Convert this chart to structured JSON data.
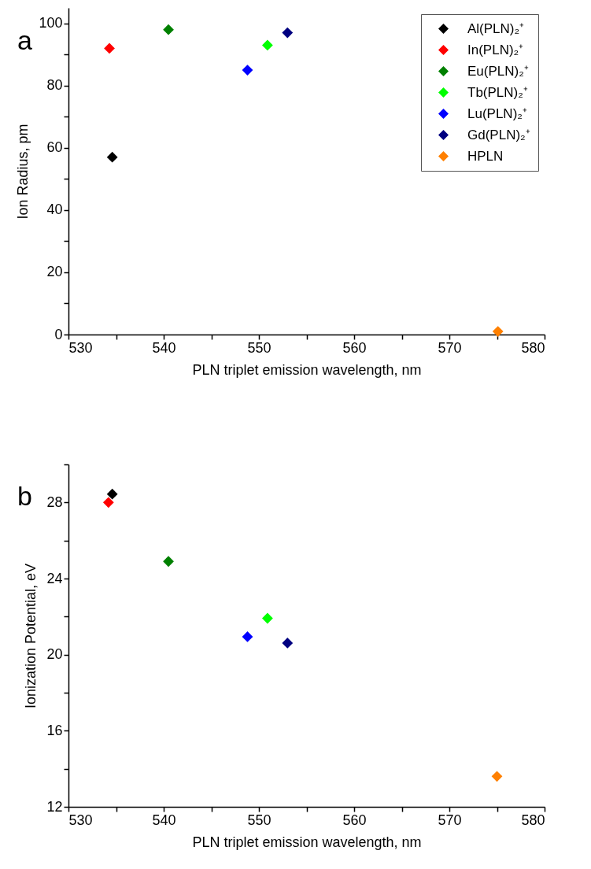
{
  "chart_data": [
    {
      "type": "scatter",
      "title": "a",
      "xlabel": "PLN triplet emission wavelength, nm",
      "ylabel": "Ion Radius, pm",
      "marker": "diamond",
      "legend": "top right",
      "xlim": [
        530,
        580
      ],
      "ylim": [
        0,
        105
      ],
      "xticks": [
        530,
        {
          "value": 535,
          "label": null
        },
        540,
        {
          "value": 545,
          "label": null
        },
        550,
        {
          "value": 555,
          "label": null
        },
        560,
        {
          "value": 565,
          "label": null
        },
        570,
        {
          "value": 575,
          "label": null
        },
        580
      ],
      "yticks": [
        0,
        {
          "value": 10,
          "label": null
        },
        20,
        {
          "value": 30,
          "label": null
        },
        40,
        {
          "value": 50,
          "label": null
        },
        60,
        {
          "value": 70,
          "label": null
        },
        80,
        {
          "value": 90,
          "label": null
        },
        100
      ],
      "series": [
        {
          "name": "Al(PLN)₂⁺",
          "color": "#000000",
          "x": [
            534.6
          ],
          "values": [
            57
          ]
        },
        {
          "name": "In(PLN)₂⁺",
          "color": "#ff0000",
          "x": [
            534.3
          ],
          "values": [
            92
          ]
        },
        {
          "name": "Eu(PLN)₂⁺",
          "color": "#008000",
          "x": [
            540.5
          ],
          "values": [
            98
          ]
        },
        {
          "name": "Tb(PLN)₂⁺",
          "color": "#00ff00",
          "x": [
            550.9
          ],
          "values": [
            93
          ]
        },
        {
          "name": "Lu(PLN)₂⁺",
          "color": "#0000ff",
          "x": [
            548.8
          ],
          "values": [
            85
          ]
        },
        {
          "name": "Gd(PLN)₂⁺",
          "color": "#000080",
          "x": [
            553.0
          ],
          "values": [
            97
          ]
        },
        {
          "name": "HPLN",
          "color": "#ff8000",
          "x": [
            575.1
          ],
          "values": [
            1
          ]
        }
      ]
    },
    {
      "type": "scatter",
      "title": "b",
      "xlabel": "PLN triplet emission wavelength, nm",
      "ylabel": "Ionization Potential, eV",
      "marker": "diamond",
      "legend": "top right",
      "xlim": [
        530,
        580
      ],
      "ylim": [
        12,
        30
      ],
      "xticks": [
        530,
        {
          "value": 535,
          "label": null
        },
        540,
        {
          "value": 545,
          "label": null
        },
        550,
        {
          "value": 555,
          "label": null
        },
        560,
        {
          "value": 565,
          "label": null
        },
        570,
        {
          "value": 575,
          "label": null
        },
        580
      ],
      "yticks": [
        12,
        {
          "value": 14,
          "label": null
        },
        16,
        {
          "value": 18,
          "label": null
        },
        20,
        {
          "value": 22,
          "label": null
        },
        24,
        {
          "value": 26,
          "label": null
        },
        28,
        {
          "value": 30,
          "label": null
        }
      ],
      "series": [
        {
          "name": "Al(PLN)₂⁺",
          "color": "#000000",
          "x": [
            534.6
          ],
          "values": [
            28.44
          ]
        },
        {
          "name": "In(PLN)₂⁺",
          "color": "#ff0000",
          "x": [
            534.2
          ],
          "values": [
            28.0
          ]
        },
        {
          "name": "Eu(PLN)₂⁺",
          "color": "#008000",
          "x": [
            540.5
          ],
          "values": [
            24.9
          ]
        },
        {
          "name": "Tb(PLN)₂⁺",
          "color": "#00ff00",
          "x": [
            550.9
          ],
          "values": [
            21.91
          ]
        },
        {
          "name": "Lu(PLN)₂⁺",
          "color": "#0000ff",
          "x": [
            548.8
          ],
          "values": [
            20.94
          ]
        },
        {
          "name": "Gd(PLN)₂⁺",
          "color": "#000080",
          "x": [
            553.0
          ],
          "values": [
            20.61
          ]
        },
        {
          "name": "HPLN",
          "color": "#ff8000",
          "x": [
            575.0
          ],
          "values": [
            13.6
          ]
        }
      ]
    }
  ]
}
